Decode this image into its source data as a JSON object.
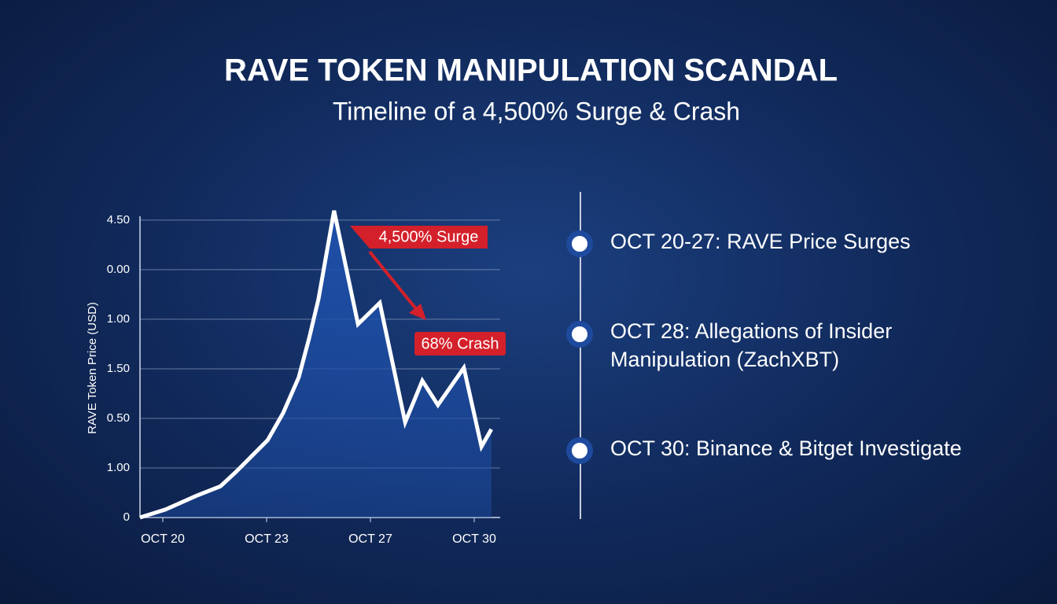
{
  "chart_data": {
    "type": "line",
    "title": "RAVE TOKEN MANIPULATION SCANDAL",
    "subtitle": "Timeline of a 4,500% Surge & Crash",
    "y_label": "RAVE Token Price (USD)",
    "x": [
      0.56,
      1.05,
      1.65,
      2.11,
      2.41,
      3.02,
      3.32,
      3.62,
      3.82,
      4.0,
      4.3,
      4.76,
      5.18,
      5.67,
      6.0,
      6.3,
      6.8,
      7.14,
      7.33
    ],
    "series": [
      {
        "color": "#ffffff",
        "fill": "#1e4fa8",
        "values": [
          0,
          0.16,
          0.44,
          0.63,
          0.92,
          1.56,
          2.11,
          2.83,
          3.62,
          4.41,
          6.19,
          3.9,
          4.33,
          1.92,
          2.76,
          2.27,
          3.02,
          1.43,
          1.78
        ]
      }
    ],
    "xlim": [
      0.5,
      7.5
    ],
    "xticks": [
      {
        "value": 1,
        "label": "OCT 20"
      },
      {
        "value": 3,
        "label": "OCT 23"
      },
      {
        "value": 5,
        "label": "OCT 27"
      },
      {
        "value": 7,
        "label": "OCT 30"
      }
    ],
    "ylim": [
      0,
      6.3
    ],
    "yticks": [
      0,
      {
        "value": 1,
        "label": "1.00"
      },
      {
        "value": 2,
        "label": "0.50"
      },
      {
        "value": 3,
        "label": "1.50"
      },
      {
        "value": 4,
        "label": "1.00"
      },
      {
        "value": 5,
        "label": "0.00"
      },
      {
        "value": 6,
        "label": "4.50"
      }
    ],
    "grid": true,
    "annotations": [
      "4,500% Surge",
      "68% Crash"
    ]
  },
  "timeline": [
    "OCT 20-27: RAVE Price Surges",
    "OCT 28: Allegations of Insider Manipulation (ZachXBT)",
    "OCT 30: Binance & Bitget Investigate"
  ]
}
